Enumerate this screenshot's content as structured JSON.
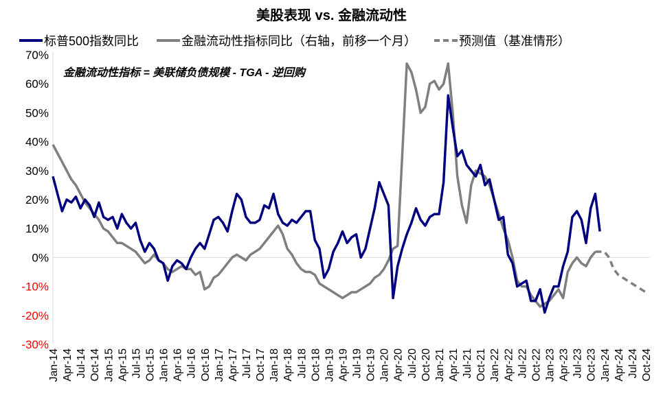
{
  "chart_data": {
    "type": "line",
    "title": "美股表现 vs. 金融流动性",
    "annotation": "金融流动性指标 = 美联储负债规模 - TGA - 逆回购",
    "ylim": [
      -30,
      70
    ],
    "yticks": [
      "70%",
      "60%",
      "50%",
      "40%",
      "30%",
      "20%",
      "10%",
      "0%",
      "-10%",
      "-20%",
      "-30%"
    ],
    "ytick_values": [
      70,
      60,
      50,
      40,
      30,
      20,
      10,
      0,
      -10,
      -20,
      -30
    ],
    "negative_tick_color": "#ff0000",
    "xticks": [
      "Jan-14",
      "Apr-14",
      "Jul-14",
      "Oct-14",
      "Jan-15",
      "Apr-15",
      "Jul-15",
      "Oct-15",
      "Jan-16",
      "Apr-16",
      "Jul-16",
      "Oct-16",
      "Jan-17",
      "Apr-17",
      "Jul-17",
      "Oct-17",
      "Jan-18",
      "Apr-18",
      "Jul-18",
      "Oct-18",
      "Jan-19",
      "Apr-19",
      "Jul-19",
      "Oct-19",
      "Jan-20",
      "Apr-20",
      "Jul-20",
      "Oct-20",
      "Jan-21",
      "Apr-21",
      "Jul-21",
      "Oct-21",
      "Jan-22",
      "Apr-22",
      "Jul-22",
      "Oct-22",
      "Jan-23",
      "Apr-23",
      "Jul-23",
      "Oct-23",
      "Jan-24",
      "Apr-24",
      "Jul-24",
      "Oct-24"
    ],
    "x_start": "Jan-14",
    "x_unit": "month",
    "series": [
      {
        "name": "标普500指数同比",
        "color": "#00007f",
        "style": "solid",
        "start_month": 0,
        "values": [
          28,
          22,
          16,
          20,
          19,
          21,
          17,
          20,
          18,
          14,
          19,
          14,
          13,
          14,
          10,
          15,
          12,
          10,
          12,
          6,
          2,
          5,
          3,
          -1,
          -2,
          -8,
          -3,
          -1,
          -2,
          -4,
          0,
          3,
          5,
          3,
          8,
          13,
          14,
          12,
          9,
          16,
          22,
          20,
          14,
          12,
          12,
          13,
          18,
          17,
          22,
          15,
          12,
          11,
          13,
          12,
          14,
          16,
          16,
          6,
          3,
          -7,
          -4,
          2,
          5,
          9,
          5,
          7,
          8,
          0,
          3,
          10,
          17,
          26,
          22,
          18,
          -14,
          -3,
          3,
          8,
          12,
          17,
          13,
          11,
          14,
          15,
          15,
          26,
          56,
          45,
          35,
          37,
          32,
          30,
          28,
          32,
          25,
          27,
          20,
          13,
          14,
          1,
          -2,
          -10,
          -9,
          -8,
          -15,
          -15,
          -11,
          -19,
          -14,
          -10,
          -10,
          -3,
          2,
          14,
          16,
          13,
          5,
          17,
          22,
          9
        ]
      },
      {
        "name": "金融流动性指标同比（右轴，前移一个月）",
        "color": "#7f7f7f",
        "style": "solid",
        "start_month": 0,
        "values": [
          39,
          36,
          33,
          30,
          27,
          25,
          22,
          19,
          17,
          15,
          13,
          10,
          9,
          7,
          5,
          5,
          4,
          3,
          2,
          0,
          -2,
          -1,
          1,
          -1,
          -2,
          -4,
          -5,
          -4,
          -3,
          -4,
          -4,
          -6,
          -5,
          -11,
          -10,
          -7,
          -6,
          -4,
          -2,
          0,
          1,
          0,
          -1,
          1,
          2,
          3,
          5,
          7,
          9,
          11,
          8,
          3,
          1,
          -2,
          -4,
          -5,
          -5,
          -6,
          -9,
          -10,
          -11,
          -12,
          -13,
          -14,
          -13,
          -12,
          -12,
          -11,
          -10,
          -9,
          -7,
          -6,
          -4,
          -1,
          3,
          4,
          35,
          67,
          64,
          58,
          50,
          52,
          60,
          61,
          58,
          60,
          67,
          50,
          28,
          18,
          12,
          25,
          30,
          29,
          28,
          25,
          20,
          15,
          10,
          6,
          0,
          -8,
          -10,
          -10,
          -13,
          -15,
          -17,
          -16,
          -15,
          -13,
          -11,
          -14,
          -5,
          -2,
          0,
          -2,
          -3,
          0,
          2
        ]
      },
      {
        "name": "预测值（基准情形）",
        "color": "#7f7f7f",
        "style": "dashed",
        "start_month": 118,
        "values": [
          2,
          2,
          2,
          0,
          -4,
          -6,
          -7,
          -8,
          -9,
          -10,
          -11,
          -12
        ]
      }
    ],
    "legend_position": "top"
  }
}
